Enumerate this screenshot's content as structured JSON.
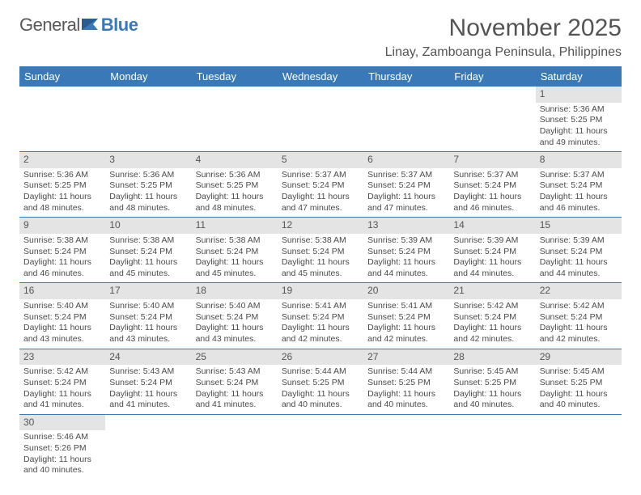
{
  "logo": {
    "word1": "General",
    "word2": "Blue"
  },
  "title": "November 2025",
  "location": "Linay, Zamboanga Peninsula, Philippines",
  "colors": {
    "accent": "#3a79b7",
    "headerText": "#ffffff",
    "dayBg": "#e4e4e4",
    "text": "#4a4a4a"
  },
  "dayHeaders": [
    "Sunday",
    "Monday",
    "Tuesday",
    "Wednesday",
    "Thursday",
    "Friday",
    "Saturday"
  ],
  "weeks": [
    [
      null,
      null,
      null,
      null,
      null,
      null,
      {
        "n": "1",
        "sr": "Sunrise: 5:36 AM",
        "ss": "Sunset: 5:25 PM",
        "dl": "Daylight: 11 hours and 49 minutes."
      }
    ],
    [
      {
        "n": "2",
        "sr": "Sunrise: 5:36 AM",
        "ss": "Sunset: 5:25 PM",
        "dl": "Daylight: 11 hours and 48 minutes."
      },
      {
        "n": "3",
        "sr": "Sunrise: 5:36 AM",
        "ss": "Sunset: 5:25 PM",
        "dl": "Daylight: 11 hours and 48 minutes."
      },
      {
        "n": "4",
        "sr": "Sunrise: 5:36 AM",
        "ss": "Sunset: 5:25 PM",
        "dl": "Daylight: 11 hours and 48 minutes."
      },
      {
        "n": "5",
        "sr": "Sunrise: 5:37 AM",
        "ss": "Sunset: 5:24 PM",
        "dl": "Daylight: 11 hours and 47 minutes."
      },
      {
        "n": "6",
        "sr": "Sunrise: 5:37 AM",
        "ss": "Sunset: 5:24 PM",
        "dl": "Daylight: 11 hours and 47 minutes."
      },
      {
        "n": "7",
        "sr": "Sunrise: 5:37 AM",
        "ss": "Sunset: 5:24 PM",
        "dl": "Daylight: 11 hours and 46 minutes."
      },
      {
        "n": "8",
        "sr": "Sunrise: 5:37 AM",
        "ss": "Sunset: 5:24 PM",
        "dl": "Daylight: 11 hours and 46 minutes."
      }
    ],
    [
      {
        "n": "9",
        "sr": "Sunrise: 5:38 AM",
        "ss": "Sunset: 5:24 PM",
        "dl": "Daylight: 11 hours and 46 minutes."
      },
      {
        "n": "10",
        "sr": "Sunrise: 5:38 AM",
        "ss": "Sunset: 5:24 PM",
        "dl": "Daylight: 11 hours and 45 minutes."
      },
      {
        "n": "11",
        "sr": "Sunrise: 5:38 AM",
        "ss": "Sunset: 5:24 PM",
        "dl": "Daylight: 11 hours and 45 minutes."
      },
      {
        "n": "12",
        "sr": "Sunrise: 5:38 AM",
        "ss": "Sunset: 5:24 PM",
        "dl": "Daylight: 11 hours and 45 minutes."
      },
      {
        "n": "13",
        "sr": "Sunrise: 5:39 AM",
        "ss": "Sunset: 5:24 PM",
        "dl": "Daylight: 11 hours and 44 minutes."
      },
      {
        "n": "14",
        "sr": "Sunrise: 5:39 AM",
        "ss": "Sunset: 5:24 PM",
        "dl": "Daylight: 11 hours and 44 minutes."
      },
      {
        "n": "15",
        "sr": "Sunrise: 5:39 AM",
        "ss": "Sunset: 5:24 PM",
        "dl": "Daylight: 11 hours and 44 minutes."
      }
    ],
    [
      {
        "n": "16",
        "sr": "Sunrise: 5:40 AM",
        "ss": "Sunset: 5:24 PM",
        "dl": "Daylight: 11 hours and 43 minutes."
      },
      {
        "n": "17",
        "sr": "Sunrise: 5:40 AM",
        "ss": "Sunset: 5:24 PM",
        "dl": "Daylight: 11 hours and 43 minutes."
      },
      {
        "n": "18",
        "sr": "Sunrise: 5:40 AM",
        "ss": "Sunset: 5:24 PM",
        "dl": "Daylight: 11 hours and 43 minutes."
      },
      {
        "n": "19",
        "sr": "Sunrise: 5:41 AM",
        "ss": "Sunset: 5:24 PM",
        "dl": "Daylight: 11 hours and 42 minutes."
      },
      {
        "n": "20",
        "sr": "Sunrise: 5:41 AM",
        "ss": "Sunset: 5:24 PM",
        "dl": "Daylight: 11 hours and 42 minutes."
      },
      {
        "n": "21",
        "sr": "Sunrise: 5:42 AM",
        "ss": "Sunset: 5:24 PM",
        "dl": "Daylight: 11 hours and 42 minutes."
      },
      {
        "n": "22",
        "sr": "Sunrise: 5:42 AM",
        "ss": "Sunset: 5:24 PM",
        "dl": "Daylight: 11 hours and 42 minutes."
      }
    ],
    [
      {
        "n": "23",
        "sr": "Sunrise: 5:42 AM",
        "ss": "Sunset: 5:24 PM",
        "dl": "Daylight: 11 hours and 41 minutes."
      },
      {
        "n": "24",
        "sr": "Sunrise: 5:43 AM",
        "ss": "Sunset: 5:24 PM",
        "dl": "Daylight: 11 hours and 41 minutes."
      },
      {
        "n": "25",
        "sr": "Sunrise: 5:43 AM",
        "ss": "Sunset: 5:24 PM",
        "dl": "Daylight: 11 hours and 41 minutes."
      },
      {
        "n": "26",
        "sr": "Sunrise: 5:44 AM",
        "ss": "Sunset: 5:25 PM",
        "dl": "Daylight: 11 hours and 40 minutes."
      },
      {
        "n": "27",
        "sr": "Sunrise: 5:44 AM",
        "ss": "Sunset: 5:25 PM",
        "dl": "Daylight: 11 hours and 40 minutes."
      },
      {
        "n": "28",
        "sr": "Sunrise: 5:45 AM",
        "ss": "Sunset: 5:25 PM",
        "dl": "Daylight: 11 hours and 40 minutes."
      },
      {
        "n": "29",
        "sr": "Sunrise: 5:45 AM",
        "ss": "Sunset: 5:25 PM",
        "dl": "Daylight: 11 hours and 40 minutes."
      }
    ],
    [
      {
        "n": "30",
        "sr": "Sunrise: 5:46 AM",
        "ss": "Sunset: 5:26 PM",
        "dl": "Daylight: 11 hours and 40 minutes."
      },
      null,
      null,
      null,
      null,
      null,
      null
    ]
  ]
}
